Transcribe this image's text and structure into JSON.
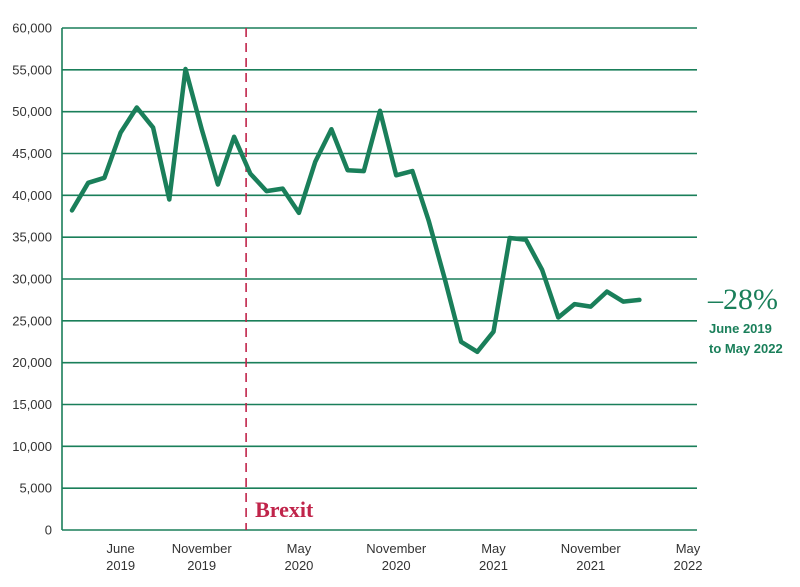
{
  "chart_data": {
    "type": "line",
    "ylim": [
      0,
      60000
    ],
    "y_ticks": [
      {
        "value": 0,
        "label": "0"
      },
      {
        "value": 5000,
        "label": "5,000"
      },
      {
        "value": 10000,
        "label": "10,000"
      },
      {
        "value": 15000,
        "label": "15,000"
      },
      {
        "value": 20000,
        "label": "20,000"
      },
      {
        "value": 25000,
        "label": "25,000"
      },
      {
        "value": 30000,
        "label": "30,000"
      },
      {
        "value": 35000,
        "label": "35,000"
      },
      {
        "value": 40000,
        "label": "40,000"
      },
      {
        "value": 45000,
        "label": "45,000"
      },
      {
        "value": 50000,
        "label": "50,000"
      },
      {
        "value": 55000,
        "label": "55,000"
      },
      {
        "value": 60000,
        "label": "60,000"
      }
    ],
    "x_ticks": [
      {
        "x": "2019-06",
        "line1": "June",
        "line2": "2019"
      },
      {
        "x": "2019-11",
        "line1": "November",
        "line2": "2019"
      },
      {
        "x": "2020-05",
        "line1": "May",
        "line2": "2020"
      },
      {
        "x": "2020-11",
        "line1": "November",
        "line2": "2020"
      },
      {
        "x": "2021-05",
        "line1": "May",
        "line2": "2021"
      },
      {
        "x": "2021-11",
        "line1": "November",
        "line2": "2021"
      },
      {
        "x": "2022-05",
        "line1": "May",
        "line2": "2022"
      }
    ],
    "x_range": [
      "2019-03",
      "2022-05"
    ],
    "grid": true,
    "series": [
      {
        "color": "#1a7f5a",
        "points": [
          {
            "x": "2019-03",
            "y": 38200
          },
          {
            "x": "2019-04",
            "y": 41500
          },
          {
            "x": "2019-05",
            "y": 42100
          },
          {
            "x": "2019-06",
            "y": 47500
          },
          {
            "x": "2019-07",
            "y": 50500
          },
          {
            "x": "2019-08",
            "y": 48100
          },
          {
            "x": "2019-09",
            "y": 39500
          },
          {
            "x": "2019-10",
            "y": 55100
          },
          {
            "x": "2019-11",
            "y": 47900
          },
          {
            "x": "2019-12",
            "y": 41300
          },
          {
            "x": "2020-01",
            "y": 47000
          },
          {
            "x": "2020-02",
            "y": 42600
          },
          {
            "x": "2020-03",
            "y": 40500
          },
          {
            "x": "2020-04",
            "y": 40800
          },
          {
            "x": "2020-05",
            "y": 37900
          },
          {
            "x": "2020-06",
            "y": 44000
          },
          {
            "x": "2020-07",
            "y": 47900
          },
          {
            "x": "2020-08",
            "y": 43000
          },
          {
            "x": "2020-09",
            "y": 42900
          },
          {
            "x": "2020-10",
            "y": 50100
          },
          {
            "x": "2020-11",
            "y": 42400
          },
          {
            "x": "2020-12",
            "y": 42900
          },
          {
            "x": "2021-01",
            "y": 37000
          },
          {
            "x": "2021-02",
            "y": 30000
          },
          {
            "x": "2021-03",
            "y": 22500
          },
          {
            "x": "2021-04",
            "y": 21300
          },
          {
            "x": "2021-05",
            "y": 23700
          },
          {
            "x": "2021-06",
            "y": 34900
          },
          {
            "x": "2021-07",
            "y": 34700
          },
          {
            "x": "2021-08",
            "y": 31100
          },
          {
            "x": "2021-09",
            "y": 25400
          },
          {
            "x": "2021-10",
            "y": 27000
          },
          {
            "x": "2021-11",
            "y": 26700
          },
          {
            "x": "2021-12",
            "y": 28500
          },
          {
            "x": "2022-01",
            "y": 27300
          },
          {
            "x": "2022-02",
            "y": 27500
          }
        ]
      }
    ],
    "annotations": {
      "brexit": {
        "x": "2020-01",
        "label": "Brexit",
        "color": "#c0244a"
      },
      "change": {
        "value": "–28%",
        "line1": "June 2019",
        "line2": "to May 2022",
        "color": "#1a7f5a"
      }
    },
    "gridline_color": "#1a7f5a",
    "axis_color": "#1a7f5a"
  }
}
